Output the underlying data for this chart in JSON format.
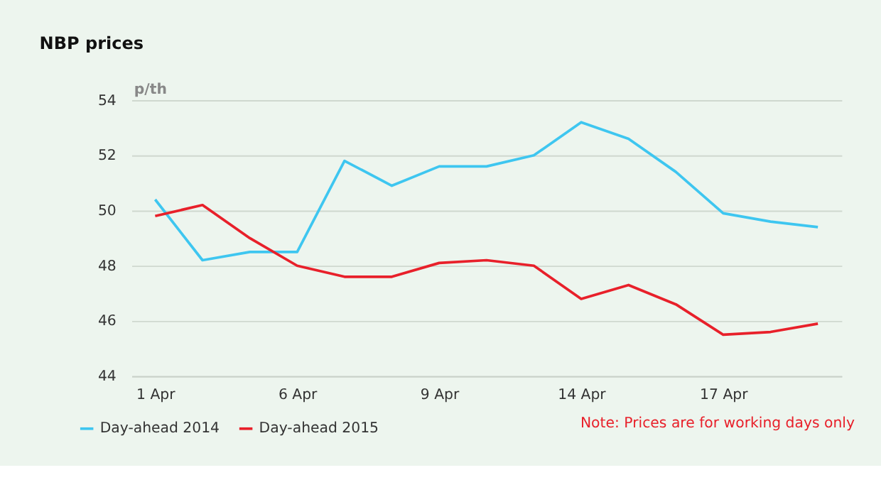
{
  "chart_data": {
    "type": "line",
    "title": "NBP prices",
    "ylabel": "p/th",
    "categories": [
      "1 Apr",
      null,
      null,
      "6 Apr",
      null,
      null,
      "9 Apr",
      null,
      null,
      "14 Apr",
      null,
      null,
      "17 Apr",
      null,
      null
    ],
    "series": [
      {
        "name": "Day-ahead 2014",
        "color": "#3ec6f0",
        "values": [
          50.4,
          48.2,
          48.5,
          48.5,
          51.8,
          50.9,
          51.6,
          51.6,
          52.0,
          53.2,
          52.6,
          51.4,
          49.9,
          49.6,
          49.4
        ]
      },
      {
        "name": "Day-ahead 2015",
        "color": "#e8202a",
        "values": [
          49.8,
          50.2,
          49.0,
          48.0,
          47.6,
          47.6,
          48.1,
          48.2,
          48.0,
          46.8,
          47.3,
          46.6,
          45.5,
          45.6,
          45.9
        ]
      }
    ],
    "ylim": [
      44,
      54
    ],
    "yticks": [
      44,
      46,
      48,
      50,
      52,
      54
    ],
    "grid": "y",
    "legend": "bottom left",
    "marker": "none",
    "line_style": "solid",
    "annotations": [
      "Note: Prices are for working days only"
    ]
  }
}
